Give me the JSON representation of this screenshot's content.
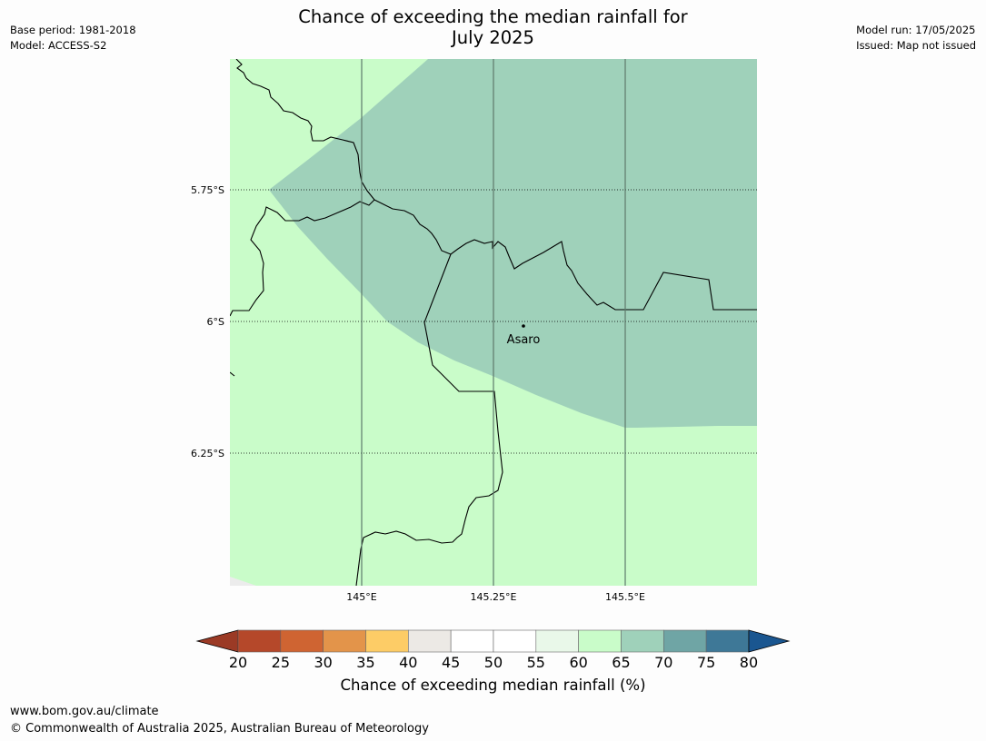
{
  "title_line1": "Chance of exceeding the median rainfall for",
  "title_line2": "July 2025",
  "meta_left": {
    "base_period": "Base period: 1981-2018",
    "model": "Model: ACCESS-S2"
  },
  "meta_right": {
    "model_run": "Model run: 17/05/2025",
    "issued": "Issued: Map not issued"
  },
  "map": {
    "lat_labels": [
      "5.75°S",
      "6°S",
      "6.25°S"
    ],
    "lon_labels": [
      "145°E",
      "145.25°E",
      "145.5°E"
    ],
    "place": "Asaro",
    "colors": {
      "land_60_65": "#c9fcc9",
      "zone_65_70": "#9fd1ba",
      "outside": "#ececec"
    }
  },
  "colorbar": {
    "ticks": [
      "20",
      "25",
      "30",
      "35",
      "40",
      "45",
      "50",
      "55",
      "60",
      "65",
      "70",
      "75",
      "80"
    ],
    "colors": [
      "#9b3a25",
      "#b5482a",
      "#cf6432",
      "#e3944a",
      "#fdcc66",
      "#ece9e5",
      "#ffffff",
      "#ffffff",
      "#e9f8e9",
      "#c9fcc9",
      "#9fd1ba",
      "#6fa5a5",
      "#3e7897",
      "#1a5690"
    ],
    "label": "Chance of exceeding median rainfall (%)"
  },
  "footer": {
    "url": "www.bom.gov.au/climate",
    "copyright": "© Commonwealth of Australia 2025, Australian Bureau of Meteorology"
  }
}
